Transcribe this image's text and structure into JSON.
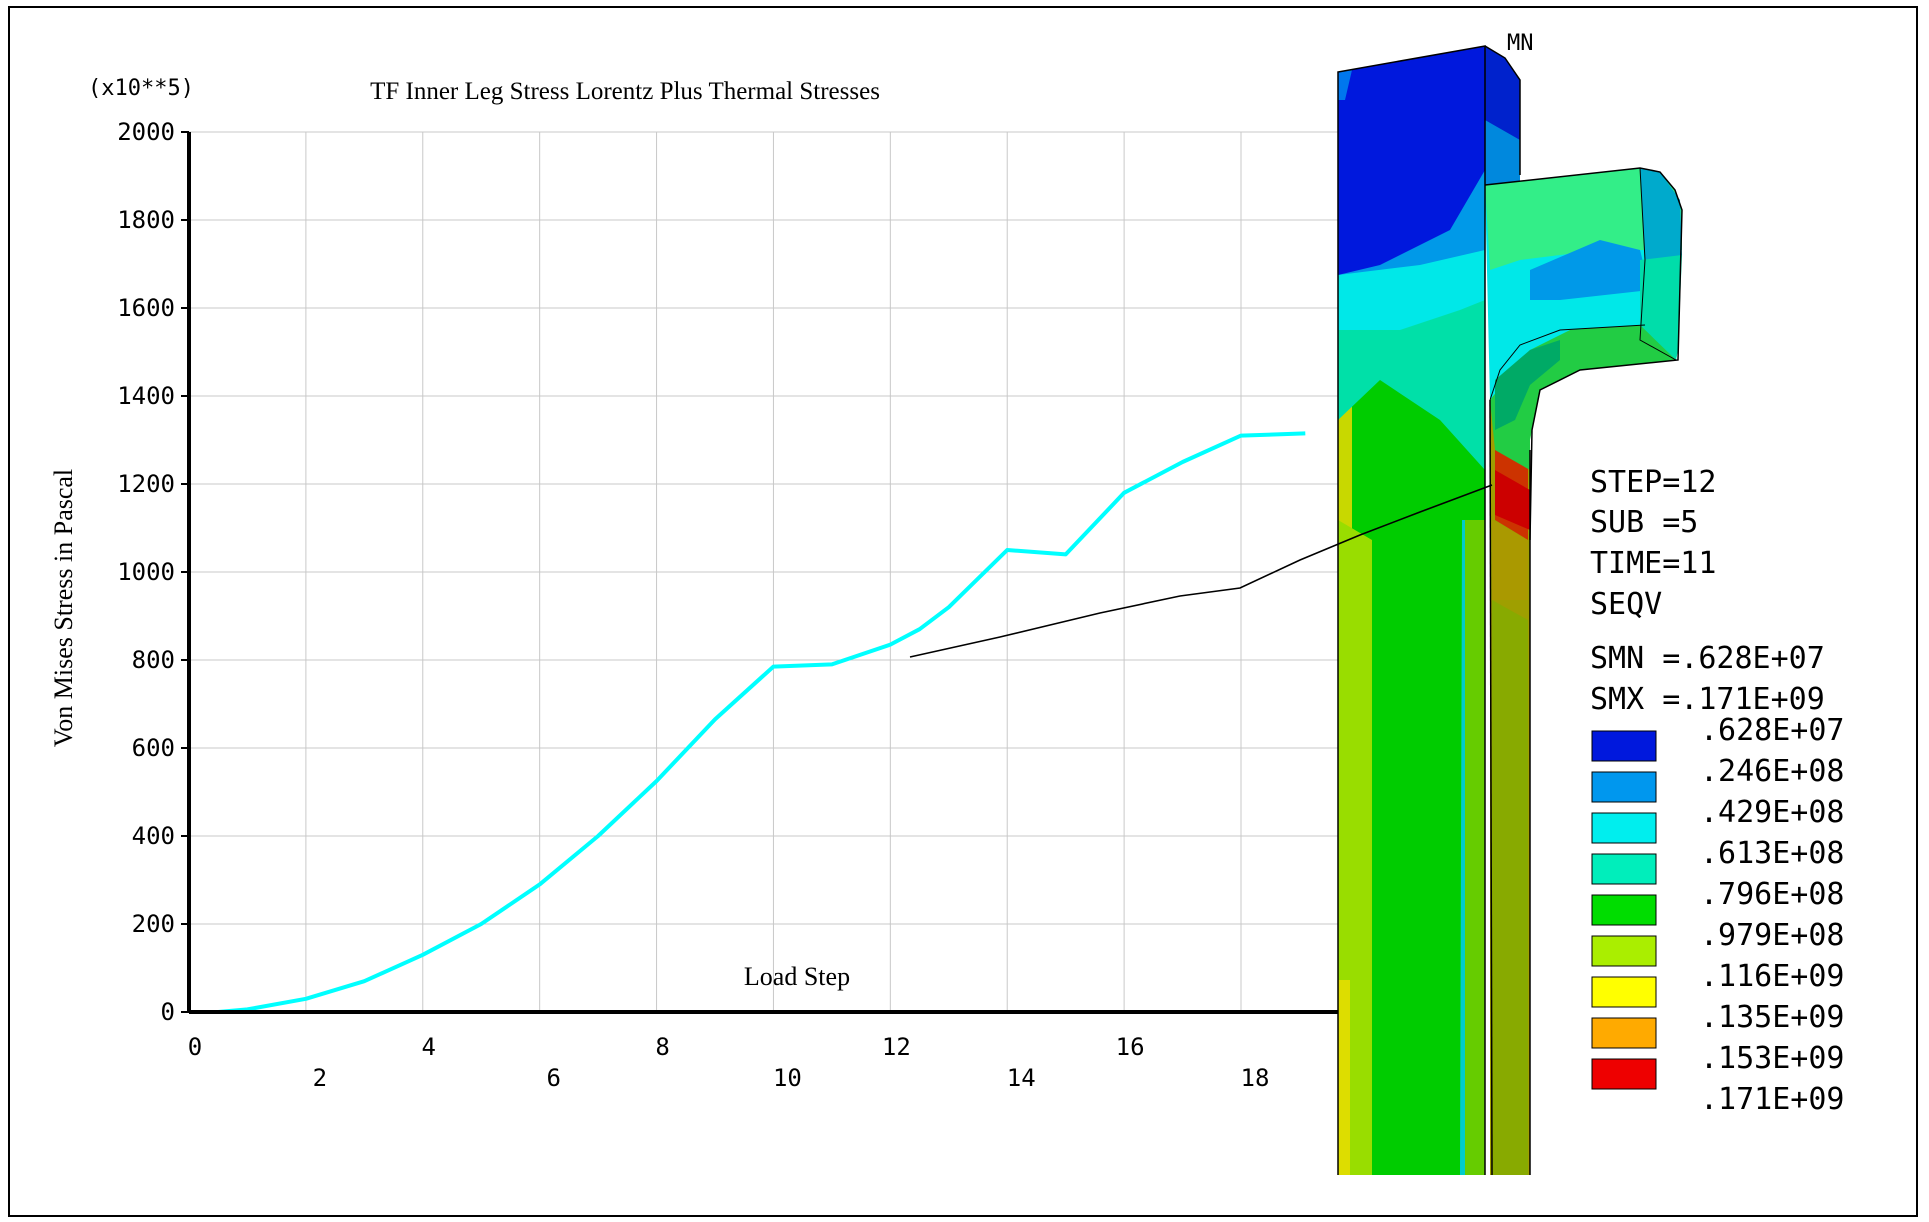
{
  "chart_data": {
    "type": "line",
    "title": "TF Inner Leg Stress Lorentz Plus Thermal Stresses",
    "xlabel": "Load Step",
    "ylabel": "Von Mises Stress in Pascal",
    "y_multiplier": "(x10**5)",
    "xlim": [
      0,
      20
    ],
    "ylim": [
      0,
      2000
    ],
    "x_ticks_upper": [
      "0",
      "4",
      "8",
      "12",
      "16"
    ],
    "x_ticks_lower": [
      "2",
      "6",
      "10",
      "14",
      "18"
    ],
    "y_ticks": [
      "0",
      "200",
      "400",
      "600",
      "800",
      "1000",
      "1200",
      "1400",
      "1600",
      "1800",
      "2000"
    ],
    "grid": true,
    "series": [
      {
        "color": "#00ffff",
        "x": [
          0,
          0.5,
          1,
          2,
          3,
          4,
          5,
          6,
          7,
          8,
          9,
          10,
          11,
          12,
          12.5,
          13,
          14,
          15,
          16,
          17,
          18,
          19.1
        ],
        "y": [
          0,
          0,
          6,
          30,
          70,
          130,
          200,
          290,
          400,
          525,
          665,
          785,
          790,
          835,
          870,
          920,
          1050,
          1040,
          1180,
          1250,
          1310,
          1315
        ]
      }
    ]
  },
  "fem_legend": {
    "step": "STEP=12",
    "sub": "SUB =5",
    "time": "TIME=11",
    "quantity": "SEQV",
    "smn": "SMN =.628E+07",
    "smx": "SMX =.171E+09",
    "mn_label": "MN",
    "levels": [
      {
        "label": ".628E+07",
        "color": ""
      },
      {
        "label": ".246E+08",
        "color": "#0018dd"
      },
      {
        "label": ".429E+08",
        "color": "#0097ee"
      },
      {
        "label": ".613E+08",
        "color": "#00eeee"
      },
      {
        "label": ".796E+08",
        "color": "#00eebb"
      },
      {
        "label": ".979E+08",
        "color": "#00dd00"
      },
      {
        "label": ".116E+09",
        "color": "#aaee00"
      },
      {
        "label": ".135E+09",
        "color": "#ffff00"
      },
      {
        "label": ".153E+09",
        "color": "#ffaa00"
      },
      {
        "label": ".171E+09",
        "color": "#ee0000"
      }
    ]
  }
}
